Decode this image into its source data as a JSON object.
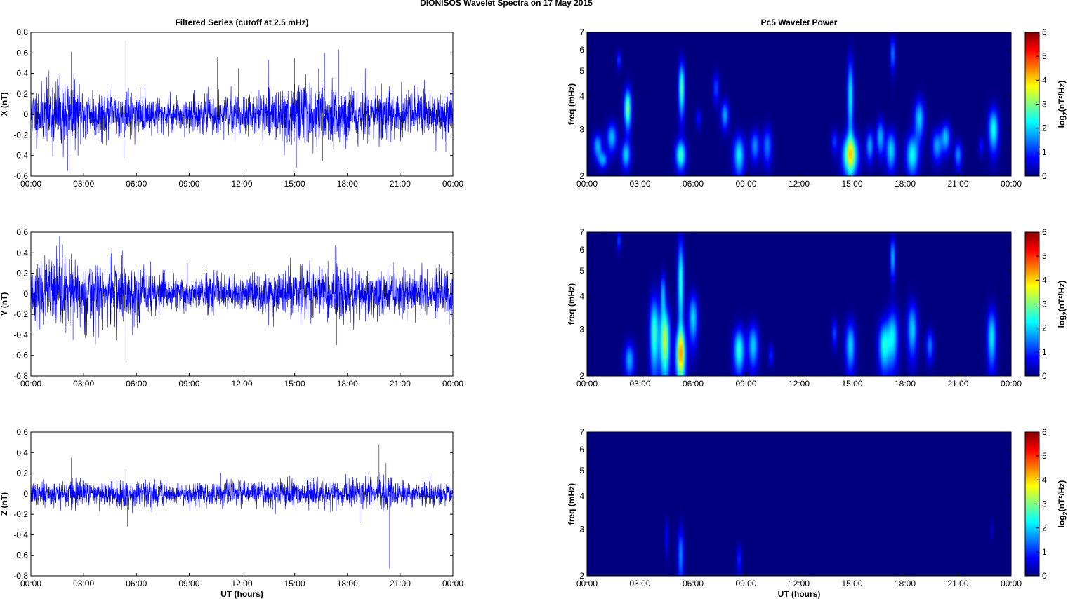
{
  "figure": {
    "suptitle": "DIONISOS Wavelet Spectra on 17 May       2015"
  },
  "colormap": {
    "name": "jet",
    "colors": [
      "#00007f",
      "#0000ff",
      "#0080ff",
      "#00ffff",
      "#80ff80",
      "#ffff00",
      "#ff8000",
      "#ff0000",
      "#7f0000"
    ]
  },
  "chart_data": [
    {
      "type": "line",
      "panel": "X",
      "title": "Filtered Series (cutoff at 2.5 mHz)",
      "xlabel": "",
      "ylabel": "X (nT)",
      "xlim": [
        0,
        24
      ],
      "ylim": [
        -0.6,
        0.8
      ],
      "xticks": [
        "00:00",
        "03:00",
        "06:00",
        "09:00",
        "12:00",
        "15:00",
        "18:00",
        "21:00",
        "00:00"
      ],
      "yticks": [
        "-0.6",
        "-0.4",
        "-0.2",
        "0",
        "0.2",
        "0.4",
        "0.6",
        "0.8"
      ],
      "line_color": "#0000ff",
      "series": [
        {
          "noise_amplitude": 0.12,
          "seed": 11,
          "envelope": [
            {
              "t": 0,
              "a": 1.0
            },
            {
              "t": 2.0,
              "a": 1.6
            },
            {
              "t": 2.6,
              "a": 1.2
            },
            {
              "t": 4.5,
              "a": 0.9
            },
            {
              "t": 8,
              "a": 0.7
            },
            {
              "t": 12,
              "a": 0.75
            },
            {
              "t": 14.5,
              "a": 1.1
            },
            {
              "t": 15.2,
              "a": 1.3
            },
            {
              "t": 17,
              "a": 1.2
            },
            {
              "t": 19,
              "a": 1.0
            },
            {
              "t": 24,
              "a": 0.9
            }
          ],
          "spikes": [
            {
              "t": 2.3,
              "v": 0.61
            },
            {
              "t": 2.1,
              "v": -0.55
            },
            {
              "t": 5.4,
              "v": 0.73
            },
            {
              "t": 5.3,
              "v": -0.42
            },
            {
              "t": 10.6,
              "v": 0.56
            },
            {
              "t": 11.8,
              "v": 0.45
            },
            {
              "t": 15.0,
              "v": 0.55
            },
            {
              "t": 15.1,
              "v": -0.52
            },
            {
              "t": 16.7,
              "v": 0.6
            },
            {
              "t": 16.6,
              "v": -0.45
            },
            {
              "t": 17.5,
              "v": 0.63
            },
            {
              "t": 23.6,
              "v": -0.36
            }
          ]
        }
      ]
    },
    {
      "type": "heatmap",
      "panel": "X",
      "title": "Pc5 Wavelet Power",
      "xlabel": "",
      "ylabel": "freq (mHz)",
      "xlim": [
        0,
        24
      ],
      "ylim": [
        2,
        7
      ],
      "yscale": "log",
      "xticks": [
        "00:00",
        "03:00",
        "06:00",
        "09:00",
        "12:00",
        "15:00",
        "18:00",
        "21:00",
        "00:00"
      ],
      "yticks": [
        "2",
        "3",
        "4",
        "5",
        "6",
        "7"
      ],
      "colorbar_label": "log2(nT²/Hz)",
      "clim": [
        0,
        6
      ],
      "colorbar_ticks": [
        "0",
        "1",
        "2",
        "3",
        "4",
        "5",
        "6"
      ],
      "blobs": [
        {
          "t": 0.6,
          "f": 2.6,
          "dt": 0.18,
          "df": 0.2,
          "v": 1.8
        },
        {
          "t": 0.9,
          "f": 2.3,
          "dt": 0.18,
          "df": 0.12,
          "v": 1.7
        },
        {
          "t": 1.4,
          "f": 2.8,
          "dt": 0.2,
          "df": 0.25,
          "v": 1.9
        },
        {
          "t": 2.3,
          "f": 3.6,
          "dt": 0.14,
          "df": 0.45,
          "v": 3.0
        },
        {
          "t": 2.2,
          "f": 2.4,
          "dt": 0.18,
          "df": 0.2,
          "v": 2.0
        },
        {
          "t": 1.8,
          "f": 5.5,
          "dt": 0.08,
          "df": 0.3,
          "v": 1.2
        },
        {
          "t": 5.3,
          "f": 2.4,
          "dt": 0.2,
          "df": 0.22,
          "v": 2.6
        },
        {
          "t": 5.35,
          "f": 4.3,
          "dt": 0.12,
          "df": 0.7,
          "v": 2.8
        },
        {
          "t": 6.3,
          "f": 3.3,
          "dt": 0.1,
          "df": 0.2,
          "v": 0.9
        },
        {
          "t": 7.3,
          "f": 4.3,
          "dt": 0.12,
          "df": 0.4,
          "v": 1.2
        },
        {
          "t": 7.8,
          "f": 3.4,
          "dt": 0.15,
          "df": 0.3,
          "v": 1.8
        },
        {
          "t": 8.6,
          "f": 2.4,
          "dt": 0.22,
          "df": 0.3,
          "v": 2.2
        },
        {
          "t": 9.5,
          "f": 2.6,
          "dt": 0.18,
          "df": 0.25,
          "v": 1.6
        },
        {
          "t": 10.2,
          "f": 2.6,
          "dt": 0.18,
          "df": 0.3,
          "v": 1.5
        },
        {
          "t": 14.0,
          "f": 2.7,
          "dt": 0.12,
          "df": 0.2,
          "v": 1.1
        },
        {
          "t": 14.9,
          "f": 2.4,
          "dt": 0.3,
          "df": 0.3,
          "v": 3.5
        },
        {
          "t": 14.9,
          "f": 4.0,
          "dt": 0.12,
          "df": 1.0,
          "v": 2.3
        },
        {
          "t": 16.0,
          "f": 2.6,
          "dt": 0.15,
          "df": 0.25,
          "v": 1.8
        },
        {
          "t": 16.6,
          "f": 2.8,
          "dt": 0.15,
          "df": 0.3,
          "v": 1.9
        },
        {
          "t": 17.2,
          "f": 2.5,
          "dt": 0.2,
          "df": 0.3,
          "v": 2.1
        },
        {
          "t": 17.3,
          "f": 5.8,
          "dt": 0.1,
          "df": 0.6,
          "v": 1.5
        },
        {
          "t": 18.4,
          "f": 2.4,
          "dt": 0.25,
          "df": 0.3,
          "v": 2.3
        },
        {
          "t": 18.8,
          "f": 3.3,
          "dt": 0.2,
          "df": 0.4,
          "v": 2.0
        },
        {
          "t": 19.8,
          "f": 2.6,
          "dt": 0.2,
          "df": 0.25,
          "v": 1.7
        },
        {
          "t": 20.3,
          "f": 2.8,
          "dt": 0.18,
          "df": 0.25,
          "v": 1.9
        },
        {
          "t": 21.0,
          "f": 2.4,
          "dt": 0.15,
          "df": 0.2,
          "v": 1.6
        },
        {
          "t": 22.3,
          "f": 2.6,
          "dt": 0.1,
          "df": 0.15,
          "v": 0.9
        },
        {
          "t": 23.0,
          "f": 3.0,
          "dt": 0.2,
          "df": 0.4,
          "v": 2.4
        }
      ]
    },
    {
      "type": "line",
      "panel": "Y",
      "title": "",
      "xlabel": "",
      "ylabel": "Y (nT)",
      "xlim": [
        0,
        24
      ],
      "ylim": [
        -0.8,
        0.6
      ],
      "xticks": [
        "00:00",
        "03:00",
        "06:00",
        "09:00",
        "12:00",
        "15:00",
        "18:00",
        "21:00",
        "00:00"
      ],
      "yticks": [
        "-0.8",
        "-0.6",
        "-0.4",
        "-0.2",
        "0",
        "0.2",
        "0.4",
        "0.6"
      ],
      "line_color": "#0000ff",
      "series": [
        {
          "noise_amplitude": 0.11,
          "seed": 23,
          "envelope": [
            {
              "t": 0,
              "a": 1.0
            },
            {
              "t": 1.5,
              "a": 1.7
            },
            {
              "t": 2.5,
              "a": 1.4
            },
            {
              "t": 4.5,
              "a": 1.6
            },
            {
              "t": 5.5,
              "a": 1.3
            },
            {
              "t": 8,
              "a": 0.8
            },
            {
              "t": 12,
              "a": 0.8
            },
            {
              "t": 15,
              "a": 1.0
            },
            {
              "t": 17.5,
              "a": 1.4
            },
            {
              "t": 19,
              "a": 1.0
            },
            {
              "t": 24,
              "a": 1.0
            }
          ],
          "spikes": [
            {
              "t": 1.8,
              "v": 0.48
            },
            {
              "t": 2.4,
              "v": -0.45
            },
            {
              "t": 4.6,
              "v": 0.45
            },
            {
              "t": 5.4,
              "v": -0.64
            },
            {
              "t": 5.2,
              "v": 0.42
            },
            {
              "t": 8.9,
              "v": 0.3
            },
            {
              "t": 16.9,
              "v": 0.32
            },
            {
              "t": 17.4,
              "v": -0.5
            },
            {
              "t": 17.3,
              "v": 0.47
            },
            {
              "t": 23.8,
              "v": -0.3
            }
          ]
        }
      ]
    },
    {
      "type": "heatmap",
      "panel": "Y",
      "title": "",
      "xlabel": "",
      "ylabel": "freq (mHz)",
      "xlim": [
        0,
        24
      ],
      "ylim": [
        2,
        7
      ],
      "yscale": "log",
      "xticks": [
        "00:00",
        "03:00",
        "06:00",
        "09:00",
        "12:00",
        "15:00",
        "18:00",
        "21:00",
        "00:00"
      ],
      "yticks": [
        "2",
        "3",
        "4",
        "5",
        "6",
        "7"
      ],
      "colorbar_label": "log2(nT²/Hz)",
      "clim": [
        0,
        6
      ],
      "colorbar_ticks": [
        "0",
        "1",
        "2",
        "3",
        "4",
        "5",
        "6"
      ],
      "blobs": [
        {
          "t": 1.8,
          "f": 6.5,
          "dt": 0.07,
          "df": 0.4,
          "v": 1.3
        },
        {
          "t": 2.4,
          "f": 2.3,
          "dt": 0.2,
          "df": 0.25,
          "v": 1.8
        },
        {
          "t": 3.8,
          "f": 2.9,
          "dt": 0.18,
          "df": 0.7,
          "v": 2.6
        },
        {
          "t": 4.4,
          "f": 2.7,
          "dt": 0.2,
          "df": 0.6,
          "v": 3.4
        },
        {
          "t": 4.3,
          "f": 4.1,
          "dt": 0.1,
          "df": 0.5,
          "v": 1.8
        },
        {
          "t": 5.3,
          "f": 2.4,
          "dt": 0.2,
          "df": 0.4,
          "v": 3.7
        },
        {
          "t": 5.3,
          "f": 4.5,
          "dt": 0.12,
          "df": 1.3,
          "v": 2.6
        },
        {
          "t": 6.0,
          "f": 3.3,
          "dt": 0.18,
          "df": 0.5,
          "v": 2.1
        },
        {
          "t": 8.6,
          "f": 2.5,
          "dt": 0.22,
          "df": 0.35,
          "v": 2.5
        },
        {
          "t": 9.4,
          "f": 2.6,
          "dt": 0.2,
          "df": 0.35,
          "v": 2.0
        },
        {
          "t": 10.4,
          "f": 2.4,
          "dt": 0.1,
          "df": 0.15,
          "v": 1.0
        },
        {
          "t": 14.0,
          "f": 2.9,
          "dt": 0.1,
          "df": 0.25,
          "v": 1.2
        },
        {
          "t": 14.9,
          "f": 2.6,
          "dt": 0.2,
          "df": 0.4,
          "v": 2.0
        },
        {
          "t": 16.8,
          "f": 2.6,
          "dt": 0.22,
          "df": 0.4,
          "v": 2.3
        },
        {
          "t": 17.3,
          "f": 2.8,
          "dt": 0.22,
          "df": 0.5,
          "v": 2.1
        },
        {
          "t": 17.3,
          "f": 5.6,
          "dt": 0.1,
          "df": 0.7,
          "v": 1.9
        },
        {
          "t": 18.4,
          "f": 3.0,
          "dt": 0.2,
          "df": 0.5,
          "v": 2.0
        },
        {
          "t": 19.4,
          "f": 2.6,
          "dt": 0.15,
          "df": 0.25,
          "v": 1.5
        },
        {
          "t": 22.9,
          "f": 2.8,
          "dt": 0.18,
          "df": 0.5,
          "v": 2.2
        }
      ]
    },
    {
      "type": "line",
      "panel": "Z",
      "title": "",
      "xlabel": "UT (hours)",
      "ylabel": "Z (nT)",
      "xlim": [
        0,
        24
      ],
      "ylim": [
        -0.8,
        0.6
      ],
      "xticks": [
        "00:00",
        "03:00",
        "06:00",
        "09:00",
        "12:00",
        "15:00",
        "18:00",
        "21:00",
        "00:00"
      ],
      "yticks": [
        "-0.8",
        "-0.6",
        "-0.4",
        "-0.2",
        "0",
        "0.2",
        "0.4",
        "0.6"
      ],
      "line_color": "#0000ff",
      "series": [
        {
          "noise_amplitude": 0.05,
          "seed": 37,
          "envelope": [
            {
              "t": 0,
              "a": 1.0
            },
            {
              "t": 2.3,
              "a": 1.5
            },
            {
              "t": 3.5,
              "a": 1.0
            },
            {
              "t": 5.3,
              "a": 1.4
            },
            {
              "t": 8,
              "a": 1.1
            },
            {
              "t": 12,
              "a": 1.2
            },
            {
              "t": 19.5,
              "a": 1.3
            },
            {
              "t": 20.3,
              "a": 1.9
            },
            {
              "t": 21,
              "a": 1.2
            },
            {
              "t": 24,
              "a": 1.0
            }
          ],
          "spikes": [
            {
              "t": 2.3,
              "v": 0.35
            },
            {
              "t": 5.5,
              "v": -0.32
            },
            {
              "t": 5.4,
              "v": 0.24
            },
            {
              "t": 10.8,
              "v": 0.2
            },
            {
              "t": 18.7,
              "v": -0.28
            },
            {
              "t": 19.8,
              "v": 0.48
            },
            {
              "t": 20.4,
              "v": -0.73
            },
            {
              "t": 20.2,
              "v": 0.3
            },
            {
              "t": 22.7,
              "v": 0.18
            }
          ]
        }
      ]
    },
    {
      "type": "heatmap",
      "panel": "Z",
      "title": "",
      "xlabel": "UT (hours)",
      "ylabel": "freq (mHz)",
      "xlim": [
        0,
        24
      ],
      "ylim": [
        2,
        7
      ],
      "yscale": "log",
      "xticks": [
        "00:00",
        "03:00",
        "06:00",
        "09:00",
        "12:00",
        "15:00",
        "18:00",
        "21:00",
        "00:00"
      ],
      "yticks": [
        "2",
        "3",
        "4",
        "5",
        "6",
        "7"
      ],
      "colorbar_label": "log2(nT²/Hz)",
      "clim": [
        0,
        6
      ],
      "colorbar_ticks": [
        "0",
        "1",
        "2",
        "3",
        "4",
        "5",
        "6"
      ],
      "blobs": [
        {
          "t": 4.5,
          "f": 2.8,
          "dt": 0.06,
          "df": 0.3,
          "v": 0.9
        },
        {
          "t": 5.3,
          "f": 2.4,
          "dt": 0.12,
          "df": 0.4,
          "v": 1.6
        },
        {
          "t": 8.6,
          "f": 2.3,
          "dt": 0.1,
          "df": 0.2,
          "v": 1.0
        },
        {
          "t": 22.9,
          "f": 3.0,
          "dt": 0.05,
          "df": 0.2,
          "v": 0.6
        }
      ]
    }
  ]
}
